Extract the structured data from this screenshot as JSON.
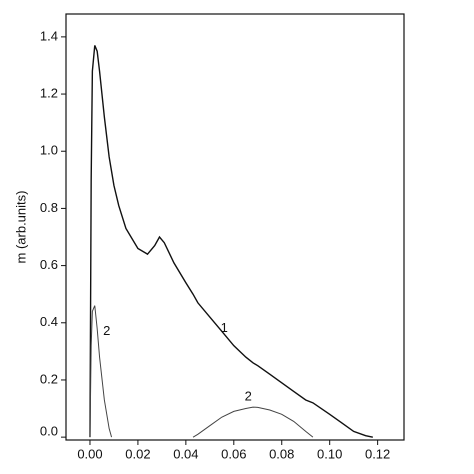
{
  "chart_data": {
    "type": "line",
    "y_label": "m (arb.units)",
    "x": [
      0,
      0.0005,
      0.001,
      0.002,
      0.003,
      0.004,
      0.006,
      0.008,
      0.009,
      0.01,
      0.012,
      0.015,
      0.02,
      0.024,
      0.027,
      0.029,
      0.031,
      0.035,
      0.04,
      0.043,
      0.045,
      0.05,
      0.055,
      0.06,
      0.065,
      0.068,
      0.07,
      0.075,
      0.08,
      0.085,
      0.09,
      0.093,
      0.1,
      0.105,
      0.11,
      0.115,
      0.118
    ],
    "series": [
      {
        "name": "1",
        "color": "#111111",
        "values": [
          0,
          0.9,
          1.28,
          1.37,
          1.35,
          1.28,
          1.12,
          0.98,
          0.93,
          0.88,
          0.81,
          0.73,
          0.66,
          0.64,
          0.67,
          0.7,
          0.68,
          0.61,
          0.54,
          0.5,
          0.47,
          0.42,
          0.37,
          0.32,
          0.28,
          0.26,
          0.25,
          0.22,
          0.19,
          0.16,
          0.13,
          0.12,
          0.08,
          0.05,
          0.02,
          0.005,
          0
        ]
      },
      {
        "name": "2",
        "color": "#444444",
        "values": [
          0,
          0.32,
          0.44,
          0.46,
          0.38,
          0.28,
          0.13,
          0.03,
          0,
          null,
          null,
          null,
          null,
          null,
          null,
          null,
          null,
          null,
          null,
          0,
          0.01,
          0.04,
          0.07,
          0.09,
          0.1,
          0.105,
          0.104,
          0.095,
          0.08,
          0.055,
          0.02,
          0,
          null,
          null,
          null,
          null,
          null
        ]
      }
    ],
    "xlim": [
      -0.01,
      0.131
    ],
    "ylim": [
      -0.01,
      1.48
    ],
    "xticks": [
      {
        "value": 0,
        "label": "0.00"
      },
      {
        "value": 0.02,
        "label": "0.02"
      },
      {
        "value": 0.04,
        "label": "0.04"
      },
      {
        "value": 0.06,
        "label": "0.06"
      },
      {
        "value": 0.08,
        "label": "0.08"
      },
      {
        "value": 0.1,
        "label": "0.10"
      },
      {
        "value": 0.12,
        "label": "0.12"
      }
    ],
    "yticks": [
      {
        "value": 0,
        "label": "0.0"
      },
      {
        "value": 0.2,
        "label": "0.2"
      },
      {
        "value": 0.4,
        "label": "0.4"
      },
      {
        "value": 0.6,
        "label": "0.6"
      },
      {
        "value": 0.8,
        "label": "0.8"
      },
      {
        "value": 1,
        "label": "1.0"
      },
      {
        "value": 1.2,
        "label": "1.2"
      },
      {
        "value": 1.4,
        "label": "1.4"
      }
    ],
    "grid": false
  }
}
